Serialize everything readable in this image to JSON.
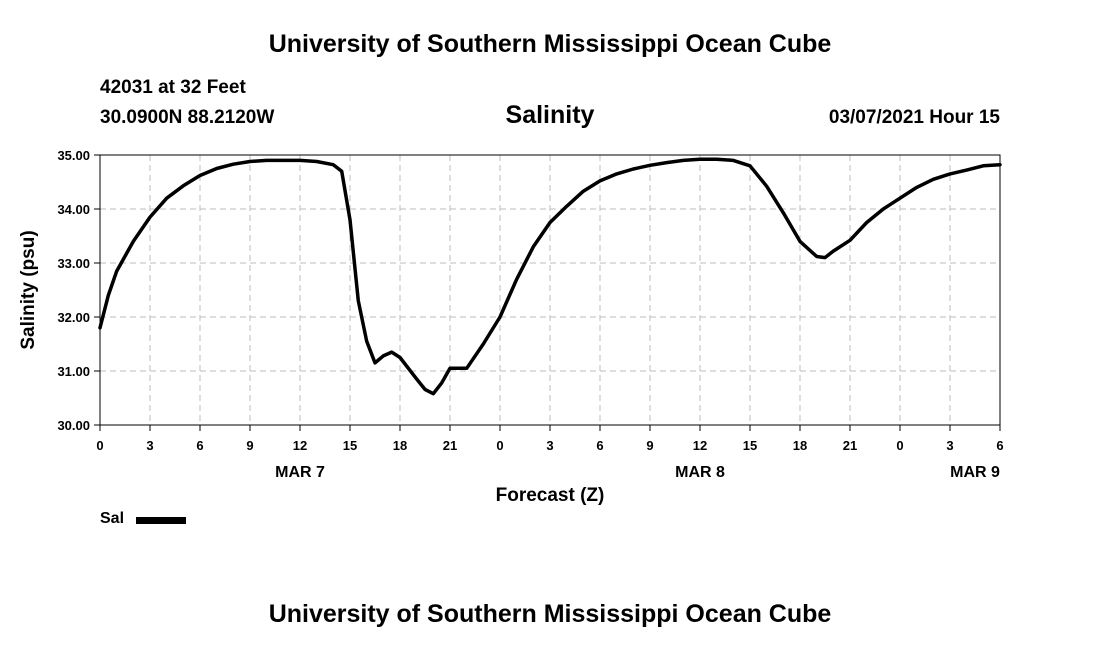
{
  "header": {
    "title": "University of Southern Mississippi Ocean Cube",
    "station": "42031 at 32 Feet",
    "coordinates": "30.0900N 88.2120W",
    "parameter": "Salinity",
    "datetime": "03/07/2021 Hour 15"
  },
  "footer": {
    "title": "University of Southern Mississippi Ocean Cube"
  },
  "legend": {
    "label": "Sal",
    "color": "#000000"
  },
  "chart_data": {
    "type": "line",
    "xlabel": "Forecast (Z)",
    "ylabel": "Salinity (psu)",
    "xlim": [
      0,
      54
    ],
    "ylim": [
      30.0,
      35.0
    ],
    "x_ticks": [
      0,
      3,
      6,
      9,
      12,
      15,
      18,
      21,
      24,
      27,
      30,
      33,
      36,
      39,
      42,
      45,
      48,
      51,
      54
    ],
    "x_tick_labels": [
      "0",
      "3",
      "6",
      "9",
      "12",
      "15",
      "18",
      "21",
      "0",
      "3",
      "6",
      "9",
      "12",
      "15",
      "18",
      "21",
      "0",
      "3",
      "6"
    ],
    "y_ticks": [
      30,
      31,
      32,
      33,
      34,
      35
    ],
    "y_tick_labels": [
      "30.00",
      "31.00",
      "32.00",
      "33.00",
      "34.00",
      "35.00"
    ],
    "day_labels": [
      {
        "x": 12,
        "label": "MAR 7"
      },
      {
        "x": 36,
        "label": "MAR 8"
      },
      {
        "x": 52.5,
        "label": "MAR 9"
      }
    ],
    "grid": true,
    "series": [
      {
        "name": "Sal",
        "color": "#000000",
        "x": [
          0,
          0.5,
          1,
          2,
          3,
          4,
          5,
          6,
          7,
          8,
          9,
          10,
          11,
          12,
          13,
          14,
          14.5,
          15,
          15.5,
          16,
          16.5,
          17,
          17.5,
          18,
          19,
          19.5,
          20,
          20.5,
          21,
          22,
          23,
          24,
          25,
          26,
          27,
          28,
          29,
          30,
          31,
          32,
          33,
          34,
          35,
          36,
          37,
          38,
          39,
          40,
          41,
          42,
          43,
          43.5,
          44,
          45,
          46,
          47,
          48,
          49,
          50,
          51,
          52,
          53,
          54
        ],
        "y": [
          31.8,
          32.4,
          32.85,
          33.4,
          33.85,
          34.2,
          34.43,
          34.62,
          34.75,
          34.83,
          34.88,
          34.9,
          34.9,
          34.9,
          34.88,
          34.82,
          34.7,
          33.8,
          32.3,
          31.55,
          31.15,
          31.28,
          31.35,
          31.25,
          30.85,
          30.66,
          30.58,
          30.78,
          31.05,
          31.05,
          31.5,
          32.0,
          32.7,
          33.3,
          33.75,
          34.05,
          34.33,
          34.52,
          34.65,
          34.74,
          34.81,
          34.86,
          34.9,
          34.92,
          34.92,
          34.9,
          34.8,
          34.42,
          33.93,
          33.4,
          33.12,
          33.1,
          33.22,
          33.42,
          33.75,
          34.0,
          34.2,
          34.4,
          34.55,
          34.65,
          34.72,
          34.8,
          34.82
        ]
      }
    ]
  }
}
